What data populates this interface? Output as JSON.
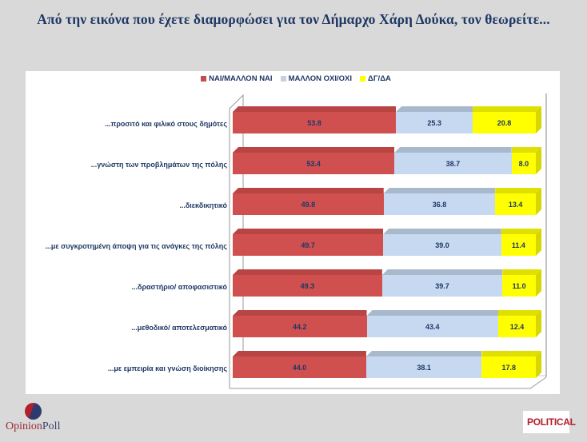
{
  "title": "Από την εικόνα που έχετε διαμορφώσει για τον Δήμαρχο Χάρη Δούκα, τον θεωρείτε...",
  "legend": [
    {
      "label": "ΝΑΙ/ΜΑΛΛΟΝ ΝΑΙ",
      "color": "#d05050"
    },
    {
      "label": "ΜΑΛΛΟΝ ΟΧΙ/ΟΧΙ",
      "color": "#c6d9f1"
    },
    {
      "label": "ΔΓ/ΔΑ",
      "color": "#ffff00"
    }
  ],
  "colors": {
    "yes": "#d05050",
    "yes_top": "#b84444",
    "no": "#c6d9f1",
    "no_top": "#a9b9cc",
    "dk": "#ffff00",
    "dk_top": "#e0e000",
    "dk_side": "#d6d600",
    "label_text": "#1f3864"
  },
  "rows": [
    {
      "label": "...προσιτό και φιλικό στους δημότες",
      "yes": "53.8",
      "no": "25.3",
      "dk": "20.8"
    },
    {
      "label": "...γνώστη των προβλημάτων της πόλης",
      "yes": "53.4",
      "no": "38.7",
      "dk": "8.0"
    },
    {
      "label": "...διεκδικητικό",
      "yes": "49.8",
      "no": "36.8",
      "dk": "13.4"
    },
    {
      "label": "...με συγκροτημένη άποψη για τις ανάγκες της πόλης",
      "yes": "49.7",
      "no": "39.0",
      "dk": "11.4"
    },
    {
      "label": "...δραστήριο/ αποφασιστικό",
      "yes": "49.3",
      "no": "39.7",
      "dk": "11.0"
    },
    {
      "label": "...μεθοδικό/ αποτελεσματικό",
      "yes": "44.2",
      "no": "43.4",
      "dk": "12.4"
    },
    {
      "label": "...με εμπειρία και γνώση διοίκησης",
      "yes": "44.0",
      "no": "38.1",
      "dk": "17.8"
    }
  ],
  "logos": {
    "opinion_poll_part1": "Opinion",
    "opinion_poll_part2": "Poll",
    "political": "POLITICAL"
  },
  "chart_data": {
    "type": "bar",
    "orientation": "horizontal",
    "stacked": true,
    "title": "Από την εικόνα που έχετε διαμορφώσει για τον Δήμαρχο Χάρη Δούκα, τον θεωρείτε...",
    "categories": [
      "...προσιτό και φιλικό στους δημότες",
      "...γνώστη των προβλημάτων της πόλης",
      "...διεκδικητικό",
      "...με συγκροτημένη άποψη για τις ανάγκες της πόλης",
      "...δραστήριο/ αποφασιστικό",
      "...μεθοδικό/ αποτελεσματικό",
      "...με εμπειρία και γνώση διοίκησης"
    ],
    "series": [
      {
        "name": "ΝΑΙ/ΜΑΛΛΟΝ ΝΑΙ",
        "color": "#d05050",
        "values": [
          53.8,
          53.4,
          49.8,
          49.7,
          49.3,
          44.2,
          44.0
        ]
      },
      {
        "name": "ΜΑΛΛΟΝ ΟΧΙ/ΟΧΙ",
        "color": "#c6d9f1",
        "values": [
          25.3,
          38.7,
          36.8,
          39.0,
          39.7,
          43.4,
          38.1
        ]
      },
      {
        "name": "ΔΓ/ΔΑ",
        "color": "#ffff00",
        "values": [
          20.8,
          8.0,
          13.4,
          11.4,
          11.0,
          12.4,
          17.8
        ]
      }
    ],
    "xlabel": "",
    "ylabel": "",
    "xlim": [
      0,
      100
    ],
    "grid": false,
    "legend_position": "top",
    "data_labels": true,
    "style": "3d"
  }
}
